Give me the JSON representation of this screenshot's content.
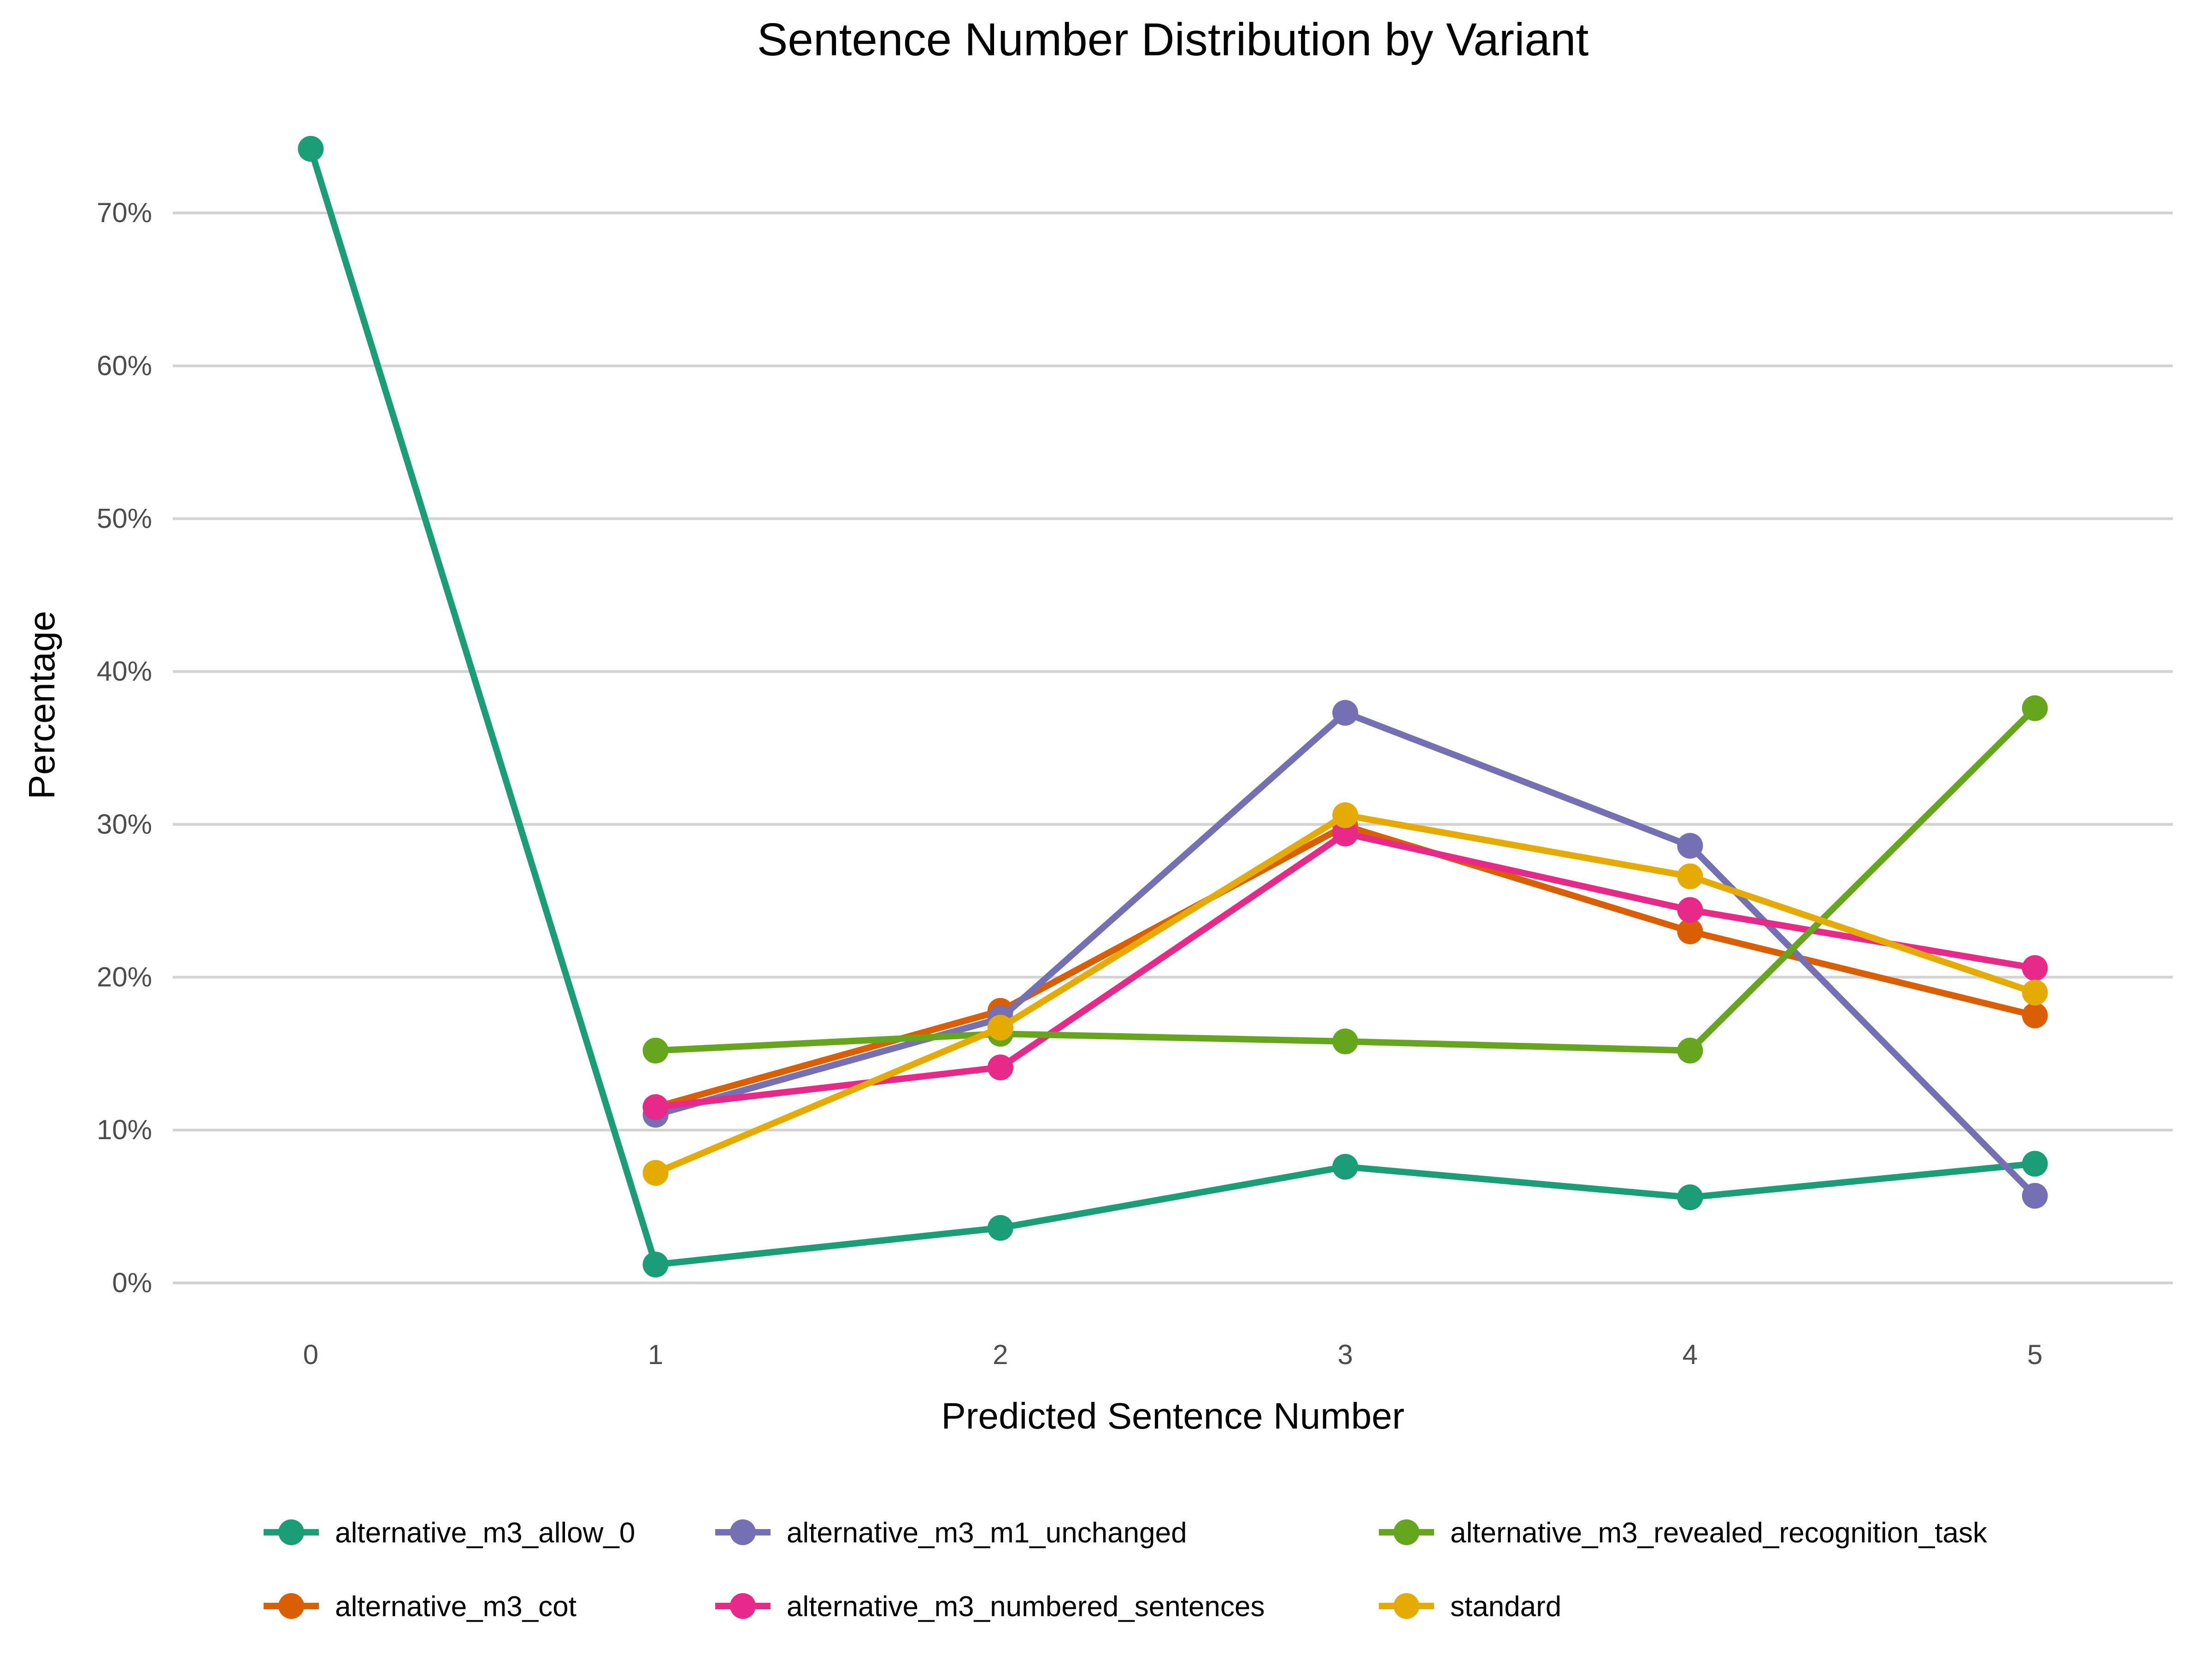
{
  "chart_data": {
    "type": "line",
    "title": "Sentence Number Distribution by Variant",
    "xlabel": "Predicted Sentence Number",
    "ylabel": "Percentage",
    "x": [
      0,
      1,
      2,
      3,
      4,
      5
    ],
    "x_tick_labels": [
      "0",
      "1",
      "2",
      "3",
      "4",
      "5"
    ],
    "xlim": [
      -0.4,
      5.4
    ],
    "ylim": [
      -3.5,
      77
    ],
    "y_ticks": [
      0,
      10,
      20,
      30,
      40,
      50,
      60,
      70
    ],
    "y_tick_labels": [
      "0%",
      "10%",
      "20%",
      "30%",
      "40%",
      "50%",
      "60%",
      "70%"
    ],
    "grid": "horizontal",
    "legend_position": "bottom",
    "series": [
      {
        "name": "alternative_m3_allow_0",
        "color": "#1b9e77",
        "x": [
          0,
          1,
          2,
          3,
          4,
          5
        ],
        "values": [
          74.2,
          1.2,
          3.6,
          7.6,
          5.6,
          7.8
        ]
      },
      {
        "name": "alternative_m3_cot",
        "color": "#d95f02",
        "x": [
          1,
          2,
          3,
          4,
          5
        ],
        "values": [
          11.5,
          17.8,
          29.9,
          23.0,
          17.5
        ]
      },
      {
        "name": "alternative_m3_m1_unchanged",
        "color": "#7570b3",
        "x": [
          1,
          2,
          3,
          4,
          5
        ],
        "values": [
          11.0,
          17.3,
          37.3,
          28.6,
          5.7
        ]
      },
      {
        "name": "alternative_m3_numbered_sentences",
        "color": "#e7298a",
        "x": [
          1,
          2,
          3,
          4,
          5
        ],
        "values": [
          11.5,
          14.1,
          29.4,
          24.4,
          20.6
        ]
      },
      {
        "name": "alternative_m3_revealed_recognition_task",
        "color": "#66a61e",
        "x": [
          1,
          2,
          3,
          4,
          5
        ],
        "values": [
          15.2,
          16.3,
          15.8,
          15.2,
          37.6
        ]
      },
      {
        "name": "standard",
        "color": "#e6ab02",
        "x": [
          1,
          2,
          3,
          4,
          5
        ],
        "values": [
          7.2,
          16.7,
          30.6,
          26.6,
          19.0
        ]
      }
    ],
    "legend_order": [
      "alternative_m3_allow_0",
      "alternative_m3_m1_unchanged",
      "alternative_m3_revealed_recognition_task",
      "alternative_m3_cot",
      "alternative_m3_numbered_sentences",
      "standard"
    ]
  }
}
